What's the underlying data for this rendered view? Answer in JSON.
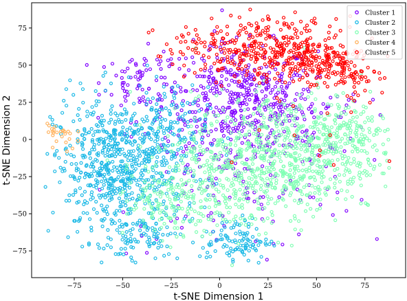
{
  "chart_data": {
    "type": "scatter",
    "title": "",
    "xlabel": "t-SNE Dimension 1",
    "ylabel": "t-SNE Dimension 2",
    "xlim": [
      -97,
      96
    ],
    "ylim": [
      -93,
      92
    ],
    "xticks": [
      -75,
      -50,
      -25,
      0,
      25,
      50,
      75
    ],
    "yticks": [
      -75,
      -50,
      -25,
      0,
      25,
      50,
      75
    ],
    "grid": false,
    "legend_position": "top-right",
    "marker": "hollow-circle",
    "series": [
      {
        "name": "Cluster 1",
        "color": "#8000ff",
        "regions": [
          {
            "cx": 10,
            "cy": 28,
            "sx": 20,
            "sy": 18,
            "n": 420
          },
          {
            "cx": -40,
            "cy": 40,
            "sx": 10,
            "sy": 10,
            "n": 70
          },
          {
            "cx": 5,
            "cy": -25,
            "sx": 32,
            "sy": 25,
            "n": 160
          },
          {
            "cx": 40,
            "cy": 15,
            "sx": 18,
            "sy": 15,
            "n": 80
          }
        ]
      },
      {
        "name": "Cluster 2",
        "color": "#1cb9e6",
        "regions": [
          {
            "cx": -52,
            "cy": -20,
            "sx": 17,
            "sy": 24,
            "n": 720
          },
          {
            "cx": -30,
            "cy": 5,
            "sx": 12,
            "sy": 15,
            "n": 120
          },
          {
            "cx": 8,
            "cy": -68,
            "sx": 9,
            "sy": 8,
            "n": 110
          },
          {
            "cx": -40,
            "cy": -65,
            "sx": 10,
            "sy": 7,
            "n": 60
          }
        ]
      },
      {
        "name": "Cluster 3",
        "color": "#80ffb4",
        "regions": [
          {
            "cx": 35,
            "cy": -10,
            "sx": 24,
            "sy": 20,
            "n": 720
          },
          {
            "cx": -5,
            "cy": -30,
            "sx": 18,
            "sy": 18,
            "n": 260
          },
          {
            "cx": 68,
            "cy": 5,
            "sx": 12,
            "sy": 10,
            "n": 120
          },
          {
            "cx": -30,
            "cy": -45,
            "sx": 12,
            "sy": 10,
            "n": 80
          }
        ]
      },
      {
        "name": "Cluster 4",
        "color": "#ffb360",
        "regions": [
          {
            "cx": -82,
            "cy": 3,
            "sx": 4,
            "sy": 6,
            "n": 26
          }
        ]
      },
      {
        "name": "Cluster 5",
        "color": "#ff0000",
        "regions": [
          {
            "cx": 25,
            "cy": 62,
            "sx": 18,
            "sy": 10,
            "n": 260
          },
          {
            "cx": 52,
            "cy": 52,
            "sx": 10,
            "sy": 9,
            "n": 170
          },
          {
            "cx": 70,
            "cy": 42,
            "sx": 5,
            "sy": 5,
            "n": 40
          },
          {
            "cx": -5,
            "cy": 60,
            "sx": 14,
            "sy": 10,
            "n": 70
          },
          {
            "cx": 55,
            "cy": 20,
            "sx": 25,
            "sy": 20,
            "n": 25
          }
        ]
      }
    ]
  }
}
